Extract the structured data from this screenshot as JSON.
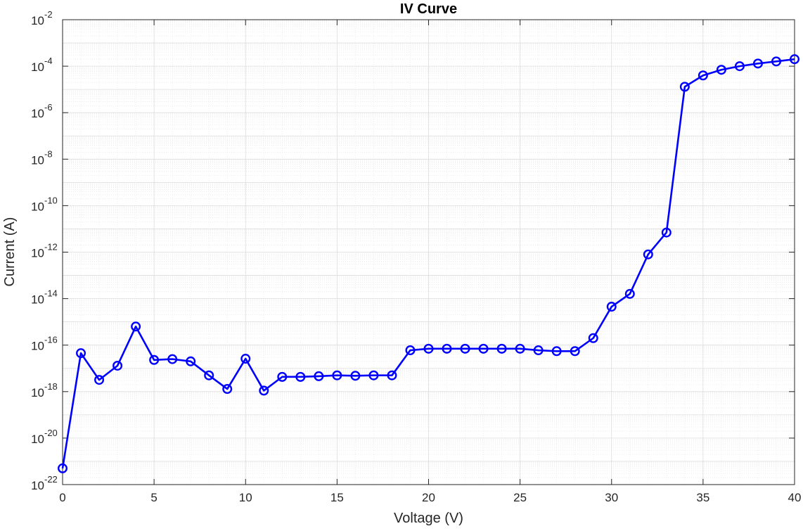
{
  "chart_data": {
    "type": "line",
    "title": "IV Curve",
    "xlabel": "Voltage (V)",
    "ylabel": "Current (A)",
    "xlim": [
      0,
      40
    ],
    "ylim": [
      1e-22,
      0.01
    ],
    "yscale": "log",
    "grid": true,
    "minor_grid": true,
    "line_color": "#0000ff",
    "marker": "circle",
    "x_ticks": [
      0,
      5,
      10,
      15,
      20,
      25,
      30,
      35,
      40
    ],
    "y_ticks": [
      {
        "base": "10",
        "exp": "-22"
      },
      {
        "base": "10",
        "exp": "-20"
      },
      {
        "base": "10",
        "exp": "-18"
      },
      {
        "base": "10",
        "exp": "-16"
      },
      {
        "base": "10",
        "exp": "-14"
      },
      {
        "base": "10",
        "exp": "-12"
      },
      {
        "base": "10",
        "exp": "-10"
      },
      {
        "base": "10",
        "exp": "-8"
      },
      {
        "base": "10",
        "exp": "-6"
      },
      {
        "base": "10",
        "exp": "-4"
      },
      {
        "base": "10",
        "exp": "-2"
      }
    ],
    "series": [
      {
        "x": [
          0,
          1,
          2,
          3,
          4,
          5,
          6,
          7,
          8,
          9,
          10,
          11,
          12,
          13,
          14,
          15,
          16,
          17,
          18,
          19,
          20,
          21,
          22,
          23,
          24,
          25,
          26,
          27,
          28,
          29,
          30,
          31,
          32,
          33,
          34,
          35,
          36,
          37,
          38,
          39,
          40
        ],
        "y": [
          5e-22,
          4.5e-17,
          3.2e-18,
          1.3e-17,
          6.3e-16,
          2.3e-17,
          2.5e-17,
          2e-17,
          5e-18,
          1.3e-18,
          2.6e-17,
          1.1e-18,
          4.3e-18,
          4.3e-18,
          4.6e-18,
          5e-18,
          4.8e-18,
          5e-18,
          5e-18,
          6e-17,
          7e-17,
          7e-17,
          7e-17,
          7e-17,
          7e-17,
          7e-17,
          6e-17,
          5.5e-17,
          5.5e-17,
          2e-16,
          4.5e-15,
          1.6e-14,
          8e-13,
          7e-12,
          1.3e-05,
          4e-05,
          7e-05,
          0.0001,
          0.00013,
          0.00016,
          0.0002
        ]
      }
    ]
  }
}
